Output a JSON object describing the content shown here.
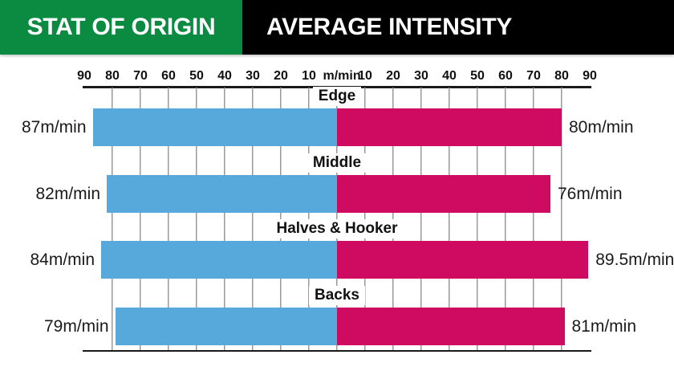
{
  "header": {
    "brand": "STAT OF ORIGIN",
    "title": "AVERAGE INTENSITY",
    "brand_bg": "#0B8A42",
    "title_bg": "#000000"
  },
  "axis": {
    "ticks": [
      "90",
      "80",
      "70",
      "60",
      "50",
      "40",
      "30",
      "20",
      "10",
      "m/min",
      "10",
      "20",
      "30",
      "40",
      "50",
      "60",
      "70",
      "80",
      "90"
    ],
    "unit": "m/min",
    "max": 90,
    "tick_step": 10
  },
  "colors": {
    "left_bar": "#57A8DB",
    "right_bar": "#CE0A61",
    "gridline": "#9A9A9A",
    "axis_line": "#1A1A1A",
    "brand_green": "#0B8A42"
  },
  "chart_data": {
    "type": "bar",
    "orientation": "diverging-horizontal",
    "title": "Stat of Origin — Average Intensity",
    "unit": "m/min",
    "xlim": [
      -90,
      90
    ],
    "tick_step": 10,
    "grid": true,
    "legend": false,
    "categories": [
      "Edge",
      "Middle",
      "Halves & Hooker",
      "Backs"
    ],
    "series": [
      {
        "name": "left",
        "color": "#57A8DB",
        "values": [
          87,
          82,
          84,
          79
        ]
      },
      {
        "name": "right",
        "color": "#CE0A61",
        "values": [
          80,
          76,
          89.5,
          81
        ]
      }
    ],
    "rows": [
      {
        "label": "Edge",
        "left_value": 87,
        "left_label": "87m/min",
        "right_value": 80,
        "right_label": "80m/min"
      },
      {
        "label": "Middle",
        "left_value": 82,
        "left_label": "82m/min",
        "right_value": 76,
        "right_label": "76m/min"
      },
      {
        "label": "Halves & Hooker",
        "left_value": 84,
        "left_label": "84m/min",
        "right_value": 89.5,
        "right_label": "89.5m/min"
      },
      {
        "label": "Backs",
        "left_value": 79,
        "left_label": "79m/min",
        "right_value": 81,
        "right_label": "81m/min"
      }
    ]
  }
}
